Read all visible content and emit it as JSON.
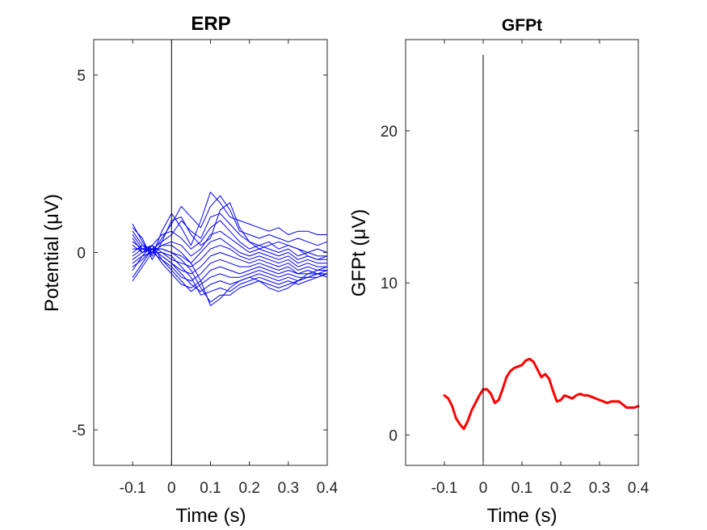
{
  "chart_data": [
    {
      "type": "line",
      "title": "ERP",
      "xlabel": "Time (s)",
      "ylabel": "Potential (μV)",
      "xlim": [
        -0.2,
        0.4
      ],
      "ylim": [
        -6,
        6
      ],
      "xticks": [
        -0.1,
        0,
        0.1,
        0.2,
        0.3,
        0.4
      ],
      "xtick_labels": [
        "-0.1",
        "0",
        "0.1",
        "0.2",
        "0.3",
        "0.4"
      ],
      "yticks": [
        -5,
        0,
        5
      ],
      "ytick_labels": [
        "-5",
        "0",
        "5"
      ],
      "grid": false,
      "vline_x": 0,
      "series_color": "#0000ff",
      "x": [
        -0.1,
        -0.075,
        -0.05,
        -0.025,
        0,
        0.025,
        0.05,
        0.075,
        0.1,
        0.125,
        0.15,
        0.175,
        0.2,
        0.225,
        0.25,
        0.275,
        0.3,
        0.325,
        0.35,
        0.375,
        0.4
      ],
      "series": [
        {
          "values": [
            0.8,
            0.3,
            -0.1,
            0.6,
            1.1,
            0.7,
            0.2,
            0.9,
            1.7,
            1.4,
            1.0,
            0.9,
            0.8,
            0.7,
            0.6,
            0.7,
            0.5,
            0.6,
            0.6,
            0.5,
            0.5
          ]
        },
        {
          "values": [
            0.6,
            0.2,
            0.0,
            0.4,
            0.8,
            1.3,
            1.0,
            0.7,
            1.3,
            1.6,
            1.2,
            0.6,
            0.5,
            0.4,
            0.5,
            0.4,
            0.3,
            0.4,
            0.3,
            0.2,
            0.3
          ]
        },
        {
          "values": [
            0.5,
            0.1,
            0.1,
            0.3,
            0.5,
            0.9,
            0.6,
            0.4,
            1.0,
            1.1,
            0.8,
            0.5,
            0.3,
            0.2,
            0.3,
            0.1,
            0.2,
            0.1,
            0.0,
            0.1,
            0.0
          ]
        },
        {
          "values": [
            0.4,
            0.0,
            0.2,
            0.5,
            0.6,
            0.4,
            0.1,
            0.3,
            0.7,
            0.9,
            0.6,
            0.3,
            0.1,
            0.2,
            0.1,
            0.0,
            0.1,
            -0.1,
            0.0,
            -0.1,
            -0.1
          ]
        },
        {
          "values": [
            0.3,
            0.1,
            0.0,
            0.2,
            0.3,
            0.2,
            -0.1,
            0.1,
            0.5,
            0.6,
            0.4,
            0.2,
            0.0,
            0.1,
            0.0,
            -0.1,
            0.0,
            -0.2,
            -0.1,
            -0.2,
            -0.2
          ]
        },
        {
          "values": [
            0.2,
            0.0,
            0.1,
            0.1,
            0.0,
            -0.1,
            -0.3,
            0.0,
            0.3,
            0.4,
            0.2,
            0.0,
            -0.1,
            0.0,
            -0.1,
            -0.2,
            -0.1,
            -0.3,
            -0.2,
            -0.3,
            -0.3
          ]
        },
        {
          "values": [
            0.1,
            0.1,
            0.2,
            0.0,
            -0.2,
            -0.3,
            -0.4,
            -0.2,
            0.1,
            0.2,
            0.1,
            -0.1,
            -0.2,
            -0.1,
            -0.2,
            -0.3,
            -0.2,
            -0.4,
            -0.3,
            -0.4,
            -0.4
          ]
        },
        {
          "values": [
            0.0,
            0.2,
            0.1,
            -0.1,
            -0.3,
            -0.5,
            -0.6,
            -0.4,
            -0.1,
            0.0,
            -0.1,
            -0.2,
            -0.3,
            -0.2,
            -0.3,
            -0.4,
            -0.3,
            -0.5,
            -0.4,
            -0.5,
            -0.5
          ]
        },
        {
          "values": [
            -0.1,
            0.1,
            0.0,
            -0.2,
            -0.4,
            -0.7,
            -0.8,
            -0.6,
            -0.3,
            -0.2,
            -0.3,
            -0.4,
            -0.4,
            -0.3,
            -0.4,
            -0.5,
            -0.4,
            -0.6,
            -0.5,
            -0.6,
            -0.6
          ]
        },
        {
          "values": [
            -0.2,
            0.0,
            0.1,
            -0.3,
            -0.6,
            -0.9,
            -1.0,
            -0.8,
            -0.5,
            -0.4,
            -0.5,
            -0.6,
            -0.5,
            -0.4,
            -0.5,
            -0.6,
            -0.5,
            -0.6,
            -0.6,
            -0.6,
            -0.7
          ]
        },
        {
          "values": [
            -0.3,
            -0.1,
            0.2,
            -0.2,
            -0.5,
            -0.8,
            -1.1,
            -0.9,
            -0.7,
            -0.6,
            -0.7,
            -0.7,
            -0.6,
            -0.5,
            -0.6,
            -0.7,
            -0.6,
            -0.7,
            -0.7,
            -0.6,
            -0.6
          ]
        },
        {
          "values": [
            -0.4,
            -0.2,
            0.1,
            -0.1,
            -0.3,
            -0.6,
            -0.9,
            -1.1,
            -0.9,
            -0.8,
            -0.9,
            -0.8,
            -0.7,
            -0.6,
            -0.7,
            -0.8,
            -0.7,
            -0.8,
            -0.7,
            -0.7,
            -0.6
          ]
        },
        {
          "values": [
            -0.5,
            -0.1,
            0.0,
            0.0,
            -0.1,
            -0.4,
            -0.7,
            -1.2,
            -1.1,
            -1.0,
            -1.1,
            -0.9,
            -0.8,
            -0.7,
            -0.8,
            -0.9,
            -0.8,
            -0.9,
            -0.8,
            -0.7,
            -0.6
          ]
        },
        {
          "values": [
            -0.7,
            -0.3,
            0.1,
            0.1,
            0.0,
            -0.2,
            -0.5,
            -1.0,
            -1.4,
            -1.2,
            -1.2,
            -1.0,
            -0.9,
            -0.8,
            -0.9,
            -1.0,
            -0.9,
            -0.8,
            -0.7,
            -0.6,
            -0.5
          ]
        },
        {
          "values": [
            -0.8,
            -0.4,
            0.0,
            0.2,
            0.2,
            0.0,
            -0.3,
            -0.8,
            -1.5,
            -1.3,
            -1.0,
            -0.8,
            -0.7,
            -0.8,
            -1.0,
            -1.1,
            -1.0,
            -0.8,
            -0.6,
            -0.5,
            -0.4
          ]
        },
        {
          "values": [
            0.7,
            0.4,
            -0.2,
            0.3,
            0.9,
            1.0,
            0.5,
            0.2,
            0.4,
            1.2,
            1.4,
            0.7,
            0.3,
            0.1,
            0.2,
            0.3,
            0.2,
            0.1,
            -0.1,
            -0.2,
            -0.1
          ]
        }
      ]
    },
    {
      "type": "line",
      "title": "GFPt",
      "xlabel": "Time (s)",
      "ylabel": "GFPt (μV)",
      "xlim": [
        -0.2,
        0.4
      ],
      "ylim": [
        -2,
        26
      ],
      "xticks": [
        -0.1,
        0,
        0.1,
        0.2,
        0.3,
        0.4
      ],
      "xtick_labels": [
        "-0.1",
        "0",
        "0.1",
        "0.2",
        "0.3",
        "0.4"
      ],
      "yticks": [
        0,
        10,
        20
      ],
      "ytick_labels": [
        "0",
        "10",
        "20"
      ],
      "grid": false,
      "vline_x": 0,
      "vline_ylim": [
        -2,
        25
      ],
      "series_color": "#ff0000",
      "x": [
        -0.1,
        -0.09,
        -0.08,
        -0.07,
        -0.06,
        -0.05,
        -0.04,
        -0.03,
        -0.02,
        -0.01,
        0.0,
        0.01,
        0.02,
        0.03,
        0.04,
        0.05,
        0.06,
        0.07,
        0.08,
        0.09,
        0.1,
        0.11,
        0.12,
        0.13,
        0.14,
        0.15,
        0.16,
        0.17,
        0.18,
        0.19,
        0.2,
        0.21,
        0.22,
        0.23,
        0.24,
        0.25,
        0.26,
        0.27,
        0.28,
        0.29,
        0.3,
        0.31,
        0.32,
        0.33,
        0.34,
        0.35,
        0.36,
        0.37,
        0.38,
        0.39,
        0.4
      ],
      "series": [
        {
          "values": [
            2.6,
            2.4,
            1.9,
            1.1,
            0.7,
            0.4,
            0.9,
            1.6,
            2.1,
            2.6,
            3.0,
            3.0,
            2.7,
            2.1,
            2.3,
            3.0,
            3.8,
            4.2,
            4.4,
            4.5,
            4.6,
            4.9,
            5.0,
            4.8,
            4.3,
            3.8,
            4.0,
            3.7,
            2.9,
            2.2,
            2.3,
            2.6,
            2.5,
            2.4,
            2.6,
            2.7,
            2.6,
            2.6,
            2.5,
            2.4,
            2.3,
            2.2,
            2.1,
            2.2,
            2.2,
            2.2,
            2.0,
            1.8,
            1.8,
            1.8,
            1.9
          ]
        }
      ]
    }
  ]
}
